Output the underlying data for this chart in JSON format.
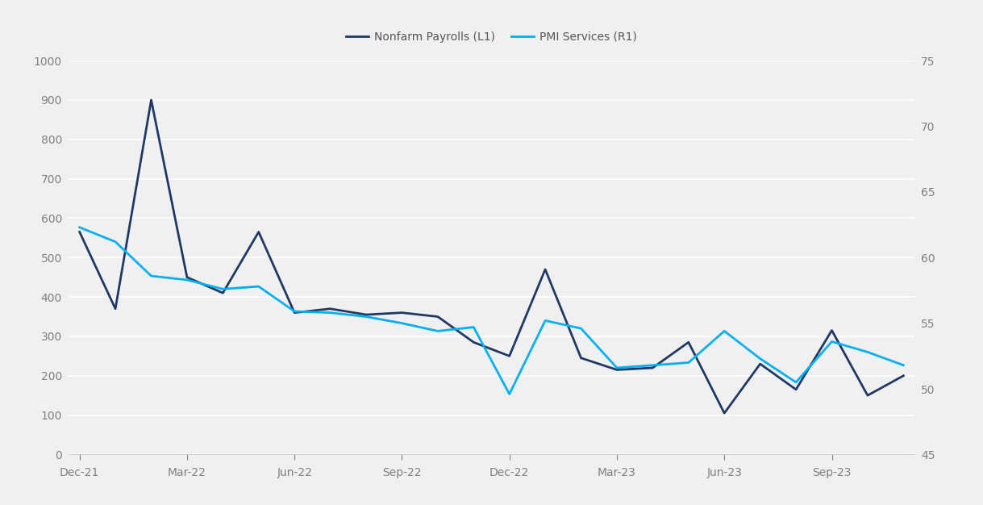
{
  "nonfarm_payrolls": {
    "x": [
      0,
      1,
      2,
      3,
      4,
      5,
      6,
      7,
      8,
      9,
      10,
      11,
      12,
      13,
      14,
      15,
      16,
      17,
      18,
      19,
      20,
      21,
      22,
      23
    ],
    "values": [
      565,
      370,
      900,
      450,
      410,
      565,
      360,
      370,
      355,
      360,
      350,
      285,
      250,
      470,
      245,
      215,
      220,
      285,
      105,
      230,
      165,
      315,
      150,
      200
    ]
  },
  "pmi_services": {
    "x": [
      0,
      1,
      2,
      3,
      4,
      5,
      6,
      7,
      8,
      9,
      10,
      11,
      12,
      13,
      14,
      15,
      16,
      17,
      18,
      19,
      20,
      21,
      22,
      23
    ],
    "values": [
      62.3,
      61.2,
      58.6,
      58.3,
      57.6,
      57.8,
      55.9,
      55.8,
      55.5,
      55.0,
      54.4,
      54.7,
      49.6,
      55.2,
      54.6,
      51.6,
      51.8,
      52.0,
      54.4,
      52.3,
      50.5,
      53.6,
      52.8,
      51.8
    ]
  },
  "nonfarm_color": "#1f3864",
  "pmi_color": "#00b0f0",
  "left_ylim": [
    0,
    1000
  ],
  "right_ylim": [
    45,
    75
  ],
  "left_yticks": [
    0,
    100,
    200,
    300,
    400,
    500,
    600,
    700,
    800,
    900,
    1000
  ],
  "right_yticks": [
    45,
    50,
    55,
    60,
    65,
    70,
    75
  ],
  "x_tick_positions": [
    0,
    3,
    6,
    9,
    12,
    15,
    18,
    21
  ],
  "x_tick_labels": [
    "Dec-21",
    "Mar-22",
    "Jun-22",
    "Sep-22",
    "Dec-22",
    "Mar-23",
    "Jun-23",
    "Sep-23"
  ],
  "legend_label_nonfarm": "Nonfarm Payrolls (L1)",
  "legend_label_pmi": "PMI Services (R1)",
  "background_color": "#f0f0f0",
  "plot_bg_color": "#f0f0f0",
  "grid_color": "#ffffff",
  "text_color": "#808080",
  "tick_fontsize": 10,
  "line_width": 2.0,
  "n_points": 24
}
